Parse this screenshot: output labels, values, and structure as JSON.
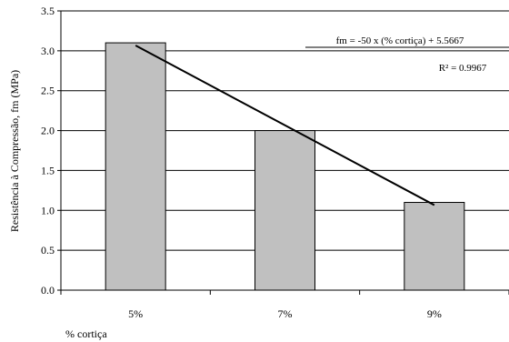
{
  "chart_data": {
    "type": "bar",
    "title": "",
    "xlabel": "% cortiça",
    "ylabel": "Resistência à Compressão, fm (MPa)",
    "categories": [
      "5%",
      "7%",
      "9%"
    ],
    "values": [
      3.1,
      2.0,
      1.1
    ],
    "ylim": [
      0,
      3.5
    ],
    "yticks": [
      "0.0",
      "0.5",
      "1.0",
      "1.5",
      "2.0",
      "2.5",
      "3.0",
      "3.5"
    ],
    "grid": "horizontal",
    "bar_color": "#c0c0c0",
    "trendline": {
      "type": "linear",
      "x": [
        5,
        9
      ],
      "y": [
        3.0667,
        1.0667
      ],
      "equation": "fm = -50 x (% cortiça) + 5.5667",
      "r_squared": "R² = 0.9967"
    }
  }
}
